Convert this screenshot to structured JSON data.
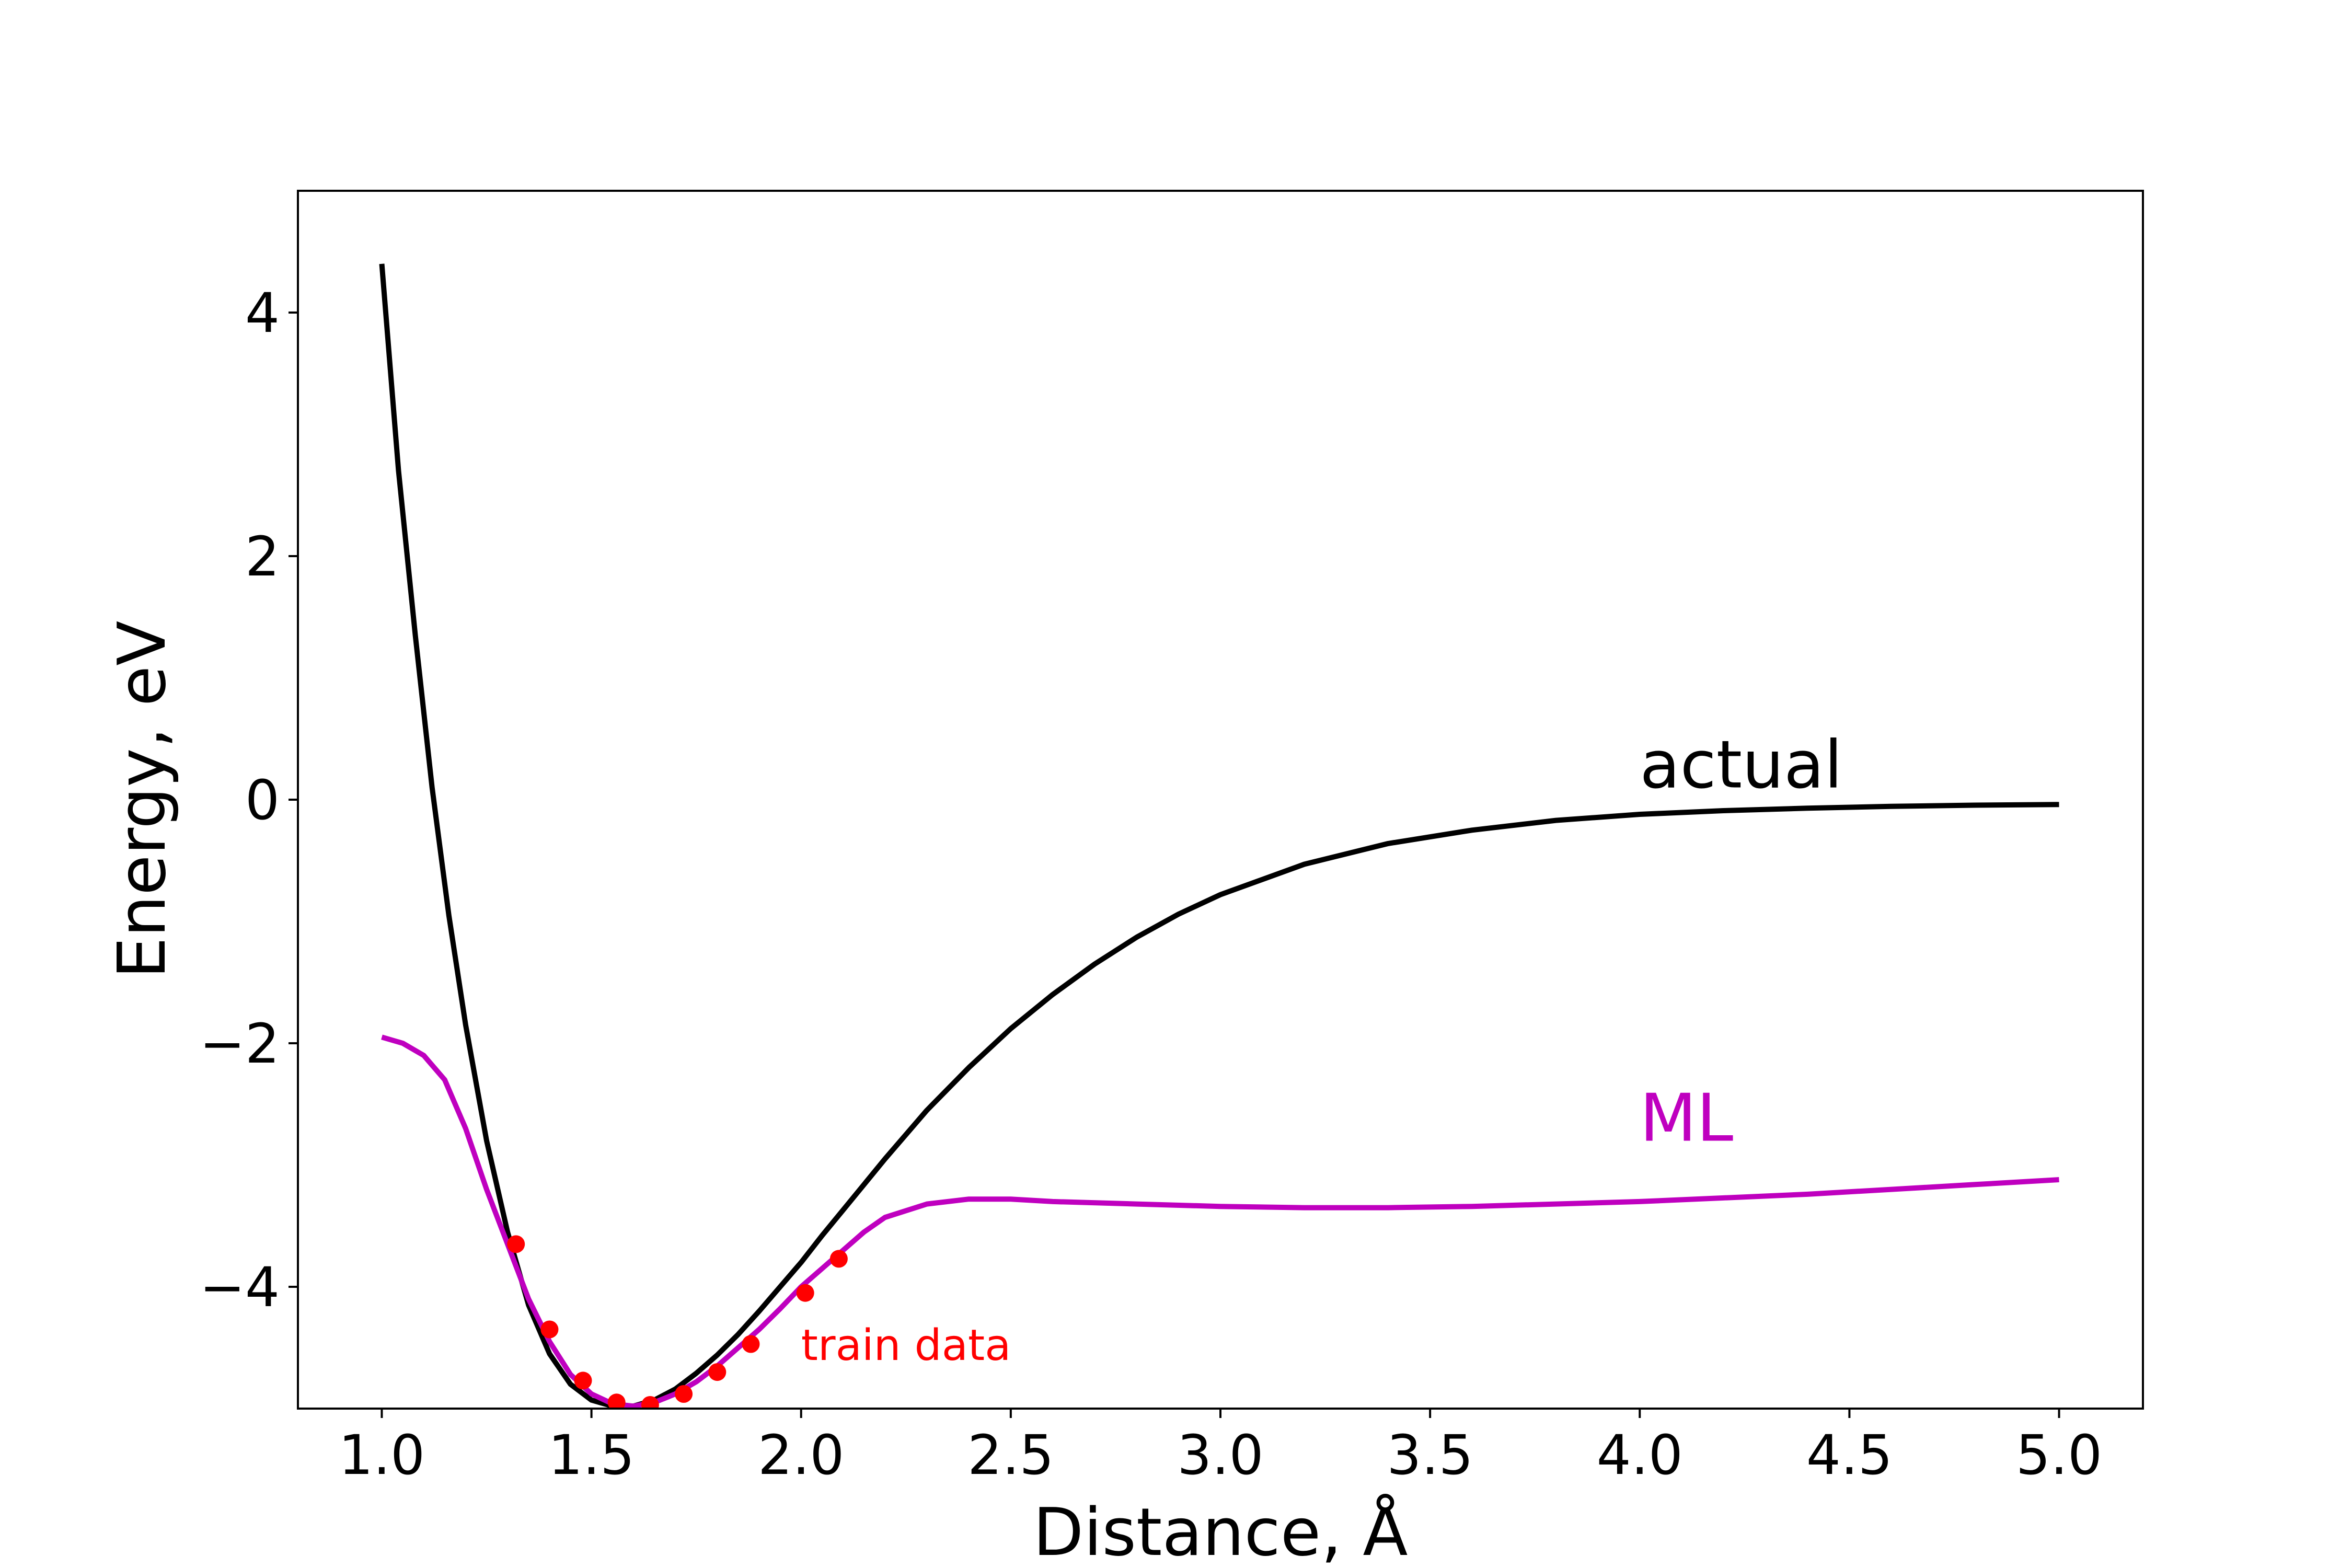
{
  "chart_data": {
    "type": "line",
    "xlabel": "Distance, Å",
    "ylabel": "Energy, eV",
    "xlim": [
      0.8,
      5.2
    ],
    "ylim": [
      -5.0,
      5.0
    ],
    "grid": false,
    "x_ticks": [
      1.0,
      1.5,
      2.0,
      2.5,
      3.0,
      3.5,
      4.0,
      4.5,
      5.0
    ],
    "x_tick_labels": [
      "1.0",
      "1.5",
      "2.0",
      "2.5",
      "3.0",
      "3.5",
      "4.0",
      "4.5",
      "5.0"
    ],
    "y_ticks": [
      -4,
      -2,
      0,
      2,
      4
    ],
    "y_tick_labels": [
      "−4",
      "−2",
      "0",
      "2",
      "4"
    ],
    "series": [
      {
        "name": "actual",
        "color": "#000000",
        "x": [
          1.0,
          1.04,
          1.08,
          1.12,
          1.16,
          1.2,
          1.25,
          1.3,
          1.35,
          1.4,
          1.45,
          1.5,
          1.55,
          1.6,
          1.65,
          1.7,
          1.75,
          1.8,
          1.85,
          1.9,
          1.95,
          2.0,
          2.05,
          2.1,
          2.2,
          2.3,
          2.4,
          2.5,
          2.6,
          2.7,
          2.8,
          2.9,
          3.0,
          3.2,
          3.4,
          3.6,
          3.8,
          4.0,
          4.2,
          4.4,
          4.6,
          4.8,
          5.0
        ],
        "y": [
          4.4,
          2.7,
          1.35,
          0.1,
          -0.95,
          -1.85,
          -2.8,
          -3.55,
          -4.15,
          -4.55,
          -4.8,
          -4.93,
          -4.98,
          -4.98,
          -4.93,
          -4.84,
          -4.71,
          -4.56,
          -4.39,
          -4.2,
          -4.0,
          -3.8,
          -3.58,
          -3.37,
          -2.95,
          -2.55,
          -2.2,
          -1.88,
          -1.6,
          -1.35,
          -1.13,
          -0.94,
          -0.78,
          -0.53,
          -0.36,
          -0.25,
          -0.17,
          -0.12,
          -0.09,
          -0.07,
          -0.055,
          -0.045,
          -0.04
        ]
      },
      {
        "name": "ML",
        "color": "#bf00bf",
        "x": [
          1.0,
          1.05,
          1.1,
          1.15,
          1.2,
          1.25,
          1.3,
          1.35,
          1.4,
          1.45,
          1.5,
          1.55,
          1.6,
          1.65,
          1.7,
          1.75,
          1.8,
          1.85,
          1.9,
          1.95,
          2.0,
          2.05,
          2.1,
          2.15,
          2.2,
          2.3,
          2.4,
          2.5,
          2.6,
          2.8,
          3.0,
          3.2,
          3.4,
          3.6,
          3.8,
          4.0,
          4.2,
          4.4,
          4.6,
          4.8,
          5.0
        ],
        "y": [
          -1.95,
          -2.0,
          -2.1,
          -2.3,
          -2.7,
          -3.2,
          -3.65,
          -4.1,
          -4.45,
          -4.72,
          -4.88,
          -4.96,
          -4.98,
          -4.95,
          -4.88,
          -4.78,
          -4.65,
          -4.5,
          -4.35,
          -4.18,
          -4.0,
          -3.85,
          -3.7,
          -3.55,
          -3.43,
          -3.32,
          -3.28,
          -3.28,
          -3.3,
          -3.32,
          -3.34,
          -3.35,
          -3.35,
          -3.34,
          -3.32,
          -3.3,
          -3.27,
          -3.24,
          -3.2,
          -3.16,
          -3.12
        ]
      }
    ],
    "train_points": {
      "name": "train data",
      "color": "#ff0000",
      "x": [
        1.32,
        1.4,
        1.48,
        1.56,
        1.64,
        1.72,
        1.8,
        1.88,
        2.01,
        2.09
      ],
      "y": [
        -3.65,
        -4.35,
        -4.77,
        -4.95,
        -4.97,
        -4.88,
        -4.7,
        -4.47,
        -4.05,
        -3.77
      ]
    },
    "annotations": [
      {
        "text": "actual",
        "x": 4.0,
        "y": 0.1,
        "color": "#000000"
      },
      {
        "text": "ML",
        "x": 4.0,
        "y": -2.8,
        "color": "#bf00bf"
      },
      {
        "text": "train data",
        "x": 2.0,
        "y": -4.6,
        "color": "#ff0000"
      }
    ]
  }
}
